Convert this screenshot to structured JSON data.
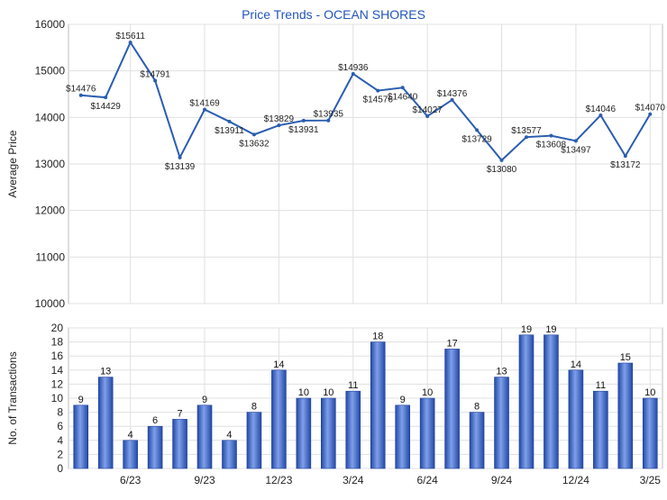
{
  "chart_data": [
    {
      "type": "line",
      "title": "Price Trends - OCEAN SHORES",
      "ylabel": "Average Price",
      "ylim": [
        10000,
        16000
      ],
      "yticks": [
        10000,
        11000,
        12000,
        13000,
        14000,
        15000,
        16000
      ],
      "grid": true,
      "series": [
        {
          "color": "#2a5db0",
          "values": [
            14476,
            14429,
            15611,
            14791,
            13139,
            14169,
            13911,
            13632,
            13829,
            13931,
            13935,
            14936,
            14576,
            14640,
            14027,
            14376,
            13729,
            13080,
            13577,
            13608,
            13497,
            14046,
            13172,
            14070
          ],
          "labels": [
            "$14476",
            "$14429",
            "$15611",
            "$14791",
            "$13139",
            "$14169",
            "$13911",
            "$13632",
            "$13829",
            "$13931",
            "$13935",
            "$14936",
            "$14576",
            "$14640",
            "$14027",
            "$14376",
            "$13729",
            "$13080",
            "$13577",
            "$13608",
            "$13497",
            "$14046",
            "$13172",
            "$14070"
          ]
        }
      ]
    },
    {
      "type": "bar",
      "ylabel": "No. of Transactions",
      "ylim": [
        0,
        20
      ],
      "yticks": [
        0,
        2,
        4,
        6,
        8,
        10,
        12,
        14,
        16,
        18,
        20
      ],
      "grid": true,
      "x_tick_labels": [
        "6/23",
        "9/23",
        "12/23",
        "3/24",
        "6/24",
        "9/24",
        "12/24",
        "3/25"
      ],
      "series": [
        {
          "color": "#3a66c8",
          "values": [
            9,
            13,
            4,
            6,
            7,
            9,
            4,
            8,
            14,
            10,
            10,
            11,
            18,
            9,
            10,
            17,
            8,
            13,
            19,
            19,
            14,
            11,
            15,
            10
          ]
        }
      ]
    }
  ]
}
